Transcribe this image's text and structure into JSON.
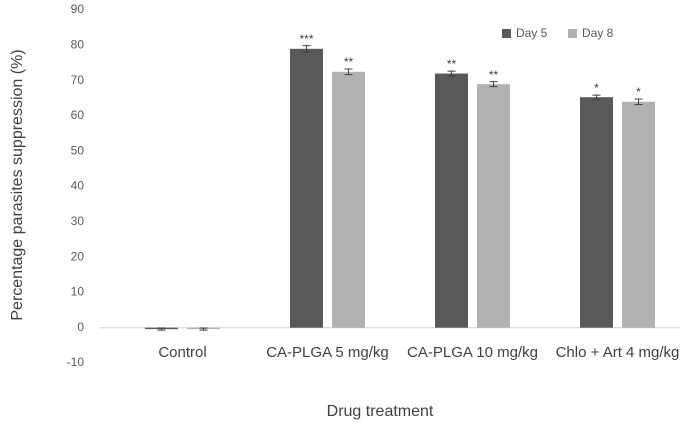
{
  "chart_data": {
    "type": "bar",
    "x_label": "Drug treatment",
    "y_label": "Percentage parasites suppression (%)",
    "categories": [
      "Control",
      "CA-PLGA 5 mg/kg",
      "CA-PLGA 10 mg/kg",
      "Chlo + Art 4 mg/kg"
    ],
    "series": [
      {
        "name": "Day 5",
        "color": "#595959",
        "values": [
          -0.4,
          79,
          72,
          65.3
        ],
        "errors": [
          0.3,
          0.9,
          0.7,
          0.6
        ],
        "significance": [
          null,
          "***",
          "**",
          "*"
        ]
      },
      {
        "name": "Day 8",
        "color": "#b2b2b2",
        "values": [
          -0.4,
          72.5,
          69,
          64
        ],
        "errors": [
          0.3,
          0.8,
          0.7,
          0.8
        ],
        "significance": [
          null,
          "**",
          "**",
          "*"
        ]
      }
    ],
    "ylim": [
      -10,
      90
    ],
    "yticks": [
      -10,
      0,
      10,
      20,
      30,
      40,
      50,
      60,
      70,
      80,
      90
    ],
    "grid": false,
    "legend": "top-right"
  }
}
